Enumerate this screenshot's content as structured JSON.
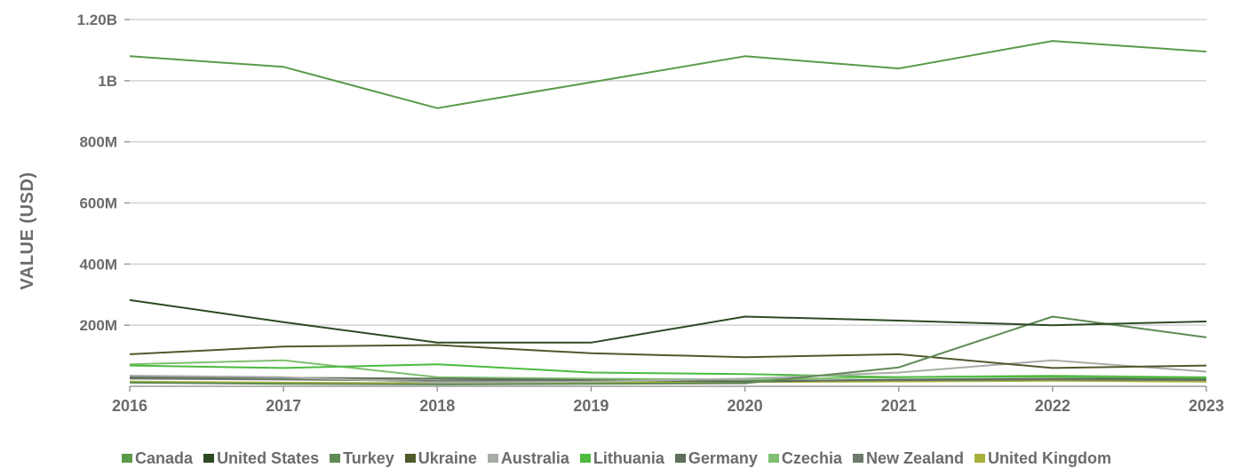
{
  "chart_data": {
    "type": "line",
    "title": "",
    "xlabel": "",
    "ylabel": "VALUE (USD)",
    "x": [
      "2016",
      "2017",
      "2018",
      "2019",
      "2020",
      "2021",
      "2022",
      "2023"
    ],
    "ylim": [
      0,
      1200000000
    ],
    "yticks": [
      {
        "value": 200000000,
        "label": "200M"
      },
      {
        "value": 400000000,
        "label": "400M"
      },
      {
        "value": 600000000,
        "label": "600M"
      },
      {
        "value": 800000000,
        "label": "800M"
      },
      {
        "value": 1000000000,
        "label": "1B"
      },
      {
        "value": 1200000000,
        "label": "1.20B"
      }
    ],
    "grid": true,
    "legend_position": "bottom",
    "series": [
      {
        "name": "Canada",
        "color": "#5a9a4a",
        "values": [
          1080000000,
          1045000000,
          910000000,
          995000000,
          1080000000,
          1040000000,
          1130000000,
          1095000000
        ]
      },
      {
        "name": "United States",
        "color": "#2d4a24",
        "values": [
          282000000,
          210000000,
          143000000,
          143000000,
          228000000,
          215000000,
          200000000,
          212000000
        ]
      },
      {
        "name": "Turkey",
        "color": "#5f8a55",
        "values": [
          12000000,
          8000000,
          6000000,
          8000000,
          10000000,
          62000000,
          228000000,
          160000000
        ]
      },
      {
        "name": "Ukraine",
        "color": "#4f5a2a",
        "values": [
          105000000,
          130000000,
          135000000,
          108000000,
          95000000,
          105000000,
          60000000,
          68000000
        ]
      },
      {
        "name": "Australia",
        "color": "#a7ada6",
        "values": [
          35000000,
          30000000,
          12000000,
          15000000,
          25000000,
          45000000,
          85000000,
          48000000
        ]
      },
      {
        "name": "Lithuania",
        "color": "#4cbb3f",
        "values": [
          68000000,
          60000000,
          72000000,
          45000000,
          40000000,
          30000000,
          32000000,
          28000000
        ]
      },
      {
        "name": "Germany",
        "color": "#5d6e5a",
        "values": [
          30000000,
          28000000,
          25000000,
          20000000,
          15000000,
          22000000,
          25000000,
          24000000
        ]
      },
      {
        "name": "Czechia",
        "color": "#7fbf6f",
        "values": [
          72000000,
          85000000,
          30000000,
          25000000,
          22000000,
          30000000,
          35000000,
          30000000
        ]
      },
      {
        "name": "New Zealand",
        "color": "#6e7a6b",
        "values": [
          25000000,
          22000000,
          18000000,
          20000000,
          18000000,
          20000000,
          22000000,
          20000000
        ]
      },
      {
        "name": "United Kingdom",
        "color": "#a8b23a",
        "values": [
          15000000,
          12000000,
          10000000,
          12000000,
          14000000,
          16000000,
          18000000,
          15000000
        ]
      }
    ]
  }
}
